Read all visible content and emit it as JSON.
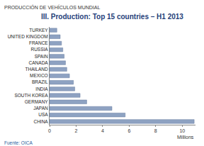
{
  "chart_data": {
    "type": "bar",
    "orientation": "horizontal",
    "title": "III. Production: Top 15 countries – H1 2013",
    "subtitle": "PRODUCCIÓN DE VEHÍCULOS MUNDIAL",
    "xlabel": "Millions",
    "annotations": [
      "Fuente: OICA"
    ],
    "categories": [
      "TURKEY",
      "UNITED KINGDOM",
      "FRANCE",
      "RUSSIA",
      "SPAIN",
      "CANADA",
      "THAILAND",
      "MEXICO",
      "BRAZIL",
      "INDIA",
      "SOUTH KOREA",
      "GERMANY",
      "JAPAN",
      "USA",
      "CHINA"
    ],
    "values": [
      0.55,
      0.8,
      0.9,
      1.0,
      1.1,
      1.2,
      1.3,
      1.5,
      1.8,
      1.9,
      2.3,
      2.8,
      4.7,
      5.7,
      10.9
    ],
    "color": "#8ea2c2",
    "xlim": [
      0,
      11
    ],
    "xticks": [
      0,
      2,
      4,
      6,
      8,
      10
    ],
    "grid": false
  }
}
